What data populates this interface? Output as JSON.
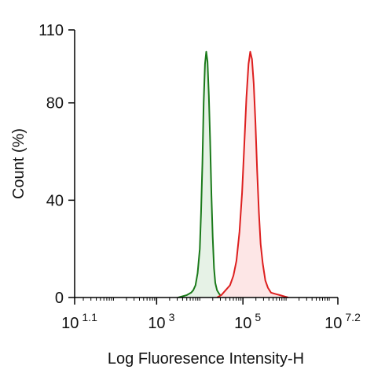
{
  "chart_data": {
    "type": "area",
    "xlabel": "Log Fluoresence Intensity-H",
    "ylabel": "Count  (%)",
    "x_scale": "log10",
    "xlim": [
      1.1,
      7.2
    ],
    "ylim": [
      0,
      110
    ],
    "y_ticks": [
      {
        "value": 0,
        "label": "0"
      },
      {
        "value": 40,
        "label": "40"
      },
      {
        "value": 80,
        "label": "80"
      },
      {
        "value": 110,
        "label": "110"
      }
    ],
    "x_ticks": [
      {
        "value": 1.1,
        "base": "10",
        "exp": "1.1"
      },
      {
        "value": 3,
        "base": "10",
        "exp": "3"
      },
      {
        "value": 5,
        "base": "10",
        "exp": "5"
      },
      {
        "value": 7.2,
        "base": "10",
        "exp": "7.2"
      }
    ],
    "grid": false,
    "series": [
      {
        "color": "#1a7a1a",
        "fill": "#e6f2e6",
        "x": [
          3.5,
          3.6,
          3.7,
          3.75,
          3.8,
          3.85,
          3.9,
          3.95,
          4.0,
          4.03,
          4.06,
          4.09,
          4.12,
          4.15,
          4.18,
          4.21,
          4.24,
          4.27,
          4.3,
          4.33,
          4.36,
          4.4,
          4.45,
          4.5,
          4.55
        ],
        "y": [
          0,
          0.5,
          1,
          1.5,
          2,
          3,
          5,
          10,
          20,
          35,
          55,
          80,
          96,
          101,
          97,
          83,
          65,
          42,
          25,
          12,
          6,
          3,
          1.5,
          0.5,
          0
        ]
      },
      {
        "color": "#dd1f1f",
        "fill": "#fde6e6",
        "x": [
          4.4,
          4.5,
          4.6,
          4.7,
          4.78,
          4.85,
          4.92,
          4.98,
          5.03,
          5.08,
          5.13,
          5.17,
          5.21,
          5.25,
          5.29,
          5.33,
          5.37,
          5.41,
          5.46,
          5.52,
          5.58,
          5.65,
          5.75,
          5.85,
          5.95,
          6.05
        ],
        "y": [
          0,
          1,
          3,
          5,
          9,
          15,
          27,
          43,
          62,
          82,
          96,
          101,
          98,
          88,
          72,
          52,
          35,
          22,
          14,
          7,
          4,
          2,
          1.5,
          1,
          0.5,
          0
        ]
      }
    ]
  }
}
